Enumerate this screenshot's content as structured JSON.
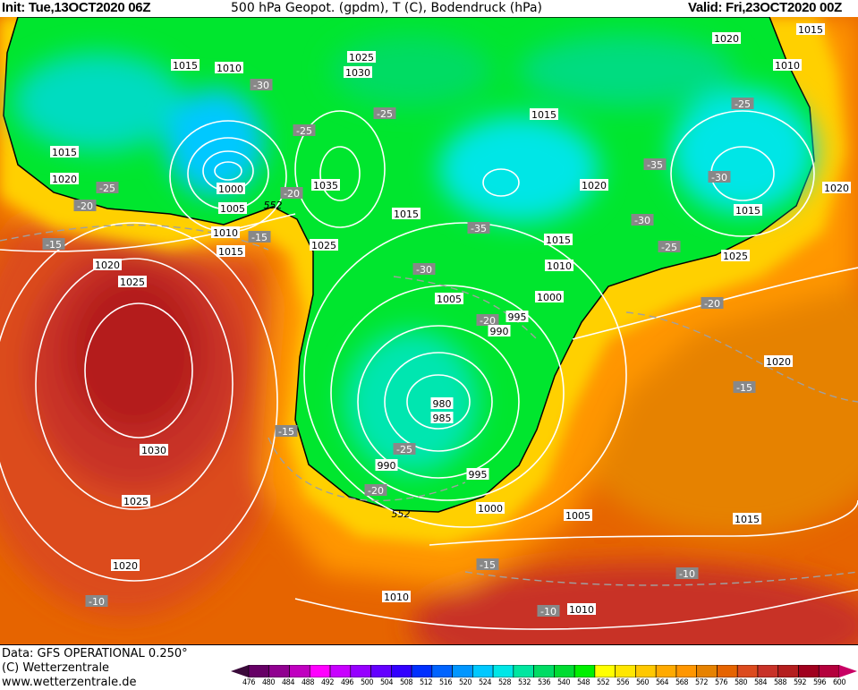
{
  "header": {
    "init": "Init: Tue,13OCT2020 06Z",
    "title": "500 hPa Geopot. (gpdm), T (C), Bodendruck (hPa)",
    "valid": "Valid: Fri,23OCT2020 00Z"
  },
  "footer": {
    "data_source": "Data: GFS OPERATIONAL 0.250°",
    "copyright": "(C) Wetterzentrale",
    "website": "www.wetterzentrale.de"
  },
  "map": {
    "fields": [
      "500 hPa geopotential (gpdm)",
      "temperature (C)",
      "surface pressure (hPa)"
    ],
    "contour_labels": [
      "1015",
      "1010",
      "1025",
      "1030",
      "-30",
      "-25",
      "-25",
      "1015",
      "1020",
      "-25",
      "1000",
      "-20",
      "1035",
      "-20",
      "1005",
      "552",
      "1010",
      "-15",
      "1015",
      "-15",
      "1020",
      "1025",
      "1025",
      "1015",
      "-35",
      "1015",
      "1020",
      "1015",
      "1010",
      "-30",
      "1005",
      "1000",
      "-20",
      "995",
      "990",
      "980",
      "985",
      "-25",
      "990",
      "995",
      "-20",
      "552",
      "1000",
      "-15",
      "1030",
      "1025",
      "1020",
      "-10",
      "1005",
      "-15",
      "1010",
      "1010",
      "-10",
      "-10",
      "1015",
      "-15",
      "1020",
      "-20",
      "1025",
      "-25",
      "-30",
      "1015",
      "1020",
      "-30",
      "-35",
      "-25",
      "1010",
      "1020",
      "1015"
    ]
  },
  "legend": {
    "ticks": [
      "476",
      "480",
      "484",
      "488",
      "492",
      "496",
      "500",
      "504",
      "508",
      "512",
      "516",
      "520",
      "524",
      "528",
      "532",
      "536",
      "540",
      "548",
      "552",
      "556",
      "560",
      "564",
      "568",
      "572",
      "576",
      "580",
      "584",
      "588",
      "592",
      "596",
      "600"
    ],
    "colors": [
      "#3a0a3a",
      "#660066",
      "#900090",
      "#c000c0",
      "#ff00ff",
      "#c800ff",
      "#9600ff",
      "#6400ff",
      "#3200ff",
      "#0030ff",
      "#0064ff",
      "#0096ff",
      "#00c8ff",
      "#00e6e6",
      "#00e6a0",
      "#00dc64",
      "#00dc32",
      "#00f000",
      "#ffff00",
      "#ffe600",
      "#ffc800",
      "#ffaa00",
      "#ff9600",
      "#e68200",
      "#e66400",
      "#dc4b1e",
      "#c83228",
      "#b41e1e",
      "#a0001e",
      "#b4003c",
      "#c80064"
    ]
  }
}
